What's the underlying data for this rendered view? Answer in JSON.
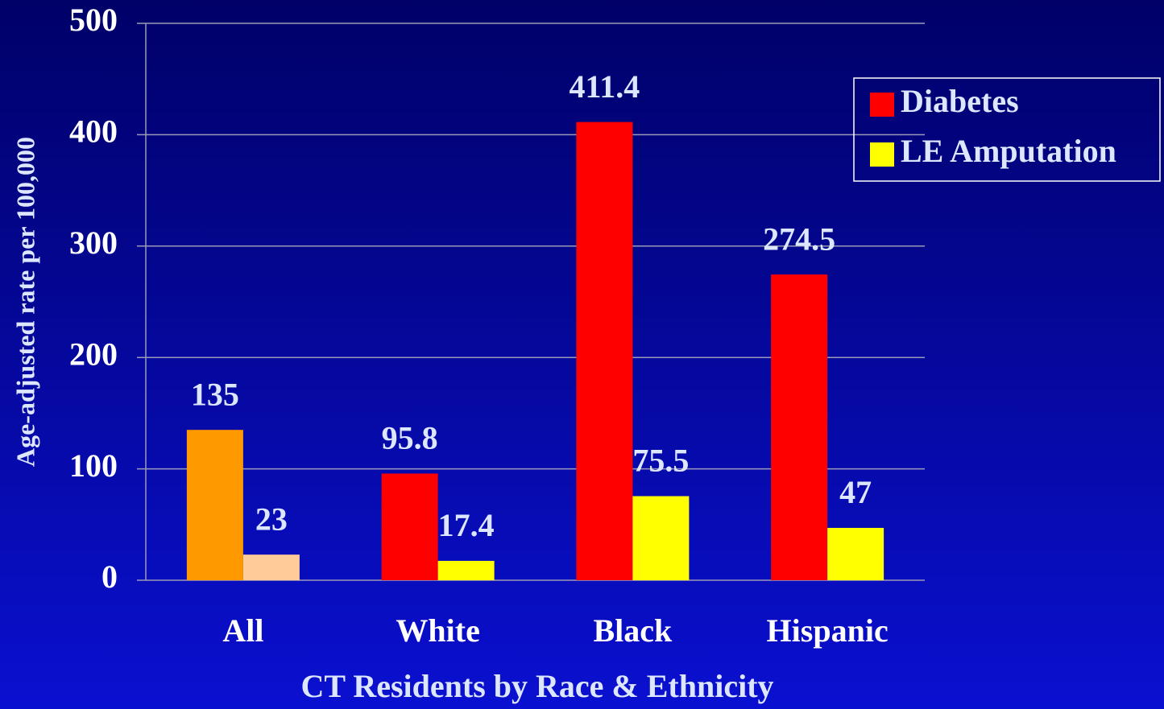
{
  "chart_data": {
    "type": "bar",
    "xlabel": "CT Residents by Race & Ethnicity",
    "ylabel": "Age-adjusted rate per 100,000",
    "categories": [
      "All",
      "White",
      "Black",
      "Hispanic"
    ],
    "series": [
      {
        "name": "Diabetes",
        "color": "#ff0000",
        "colors": [
          "#ff9900",
          "#ff0000",
          "#ff0000",
          "#ff0000"
        ],
        "values": [
          135,
          95.8,
          411.4,
          274.5
        ]
      },
      {
        "name": "LE Amputation",
        "color": "#ffff00",
        "colors": [
          "#ffcc99",
          "#ffff00",
          "#ffff00",
          "#ffff00"
        ],
        "values": [
          23,
          17.4,
          75.5,
          47
        ]
      }
    ],
    "ylim": [
      0,
      500
    ],
    "yticks": [
      0,
      100,
      200,
      300,
      400,
      500
    ],
    "grid": true,
    "legend": "right"
  }
}
